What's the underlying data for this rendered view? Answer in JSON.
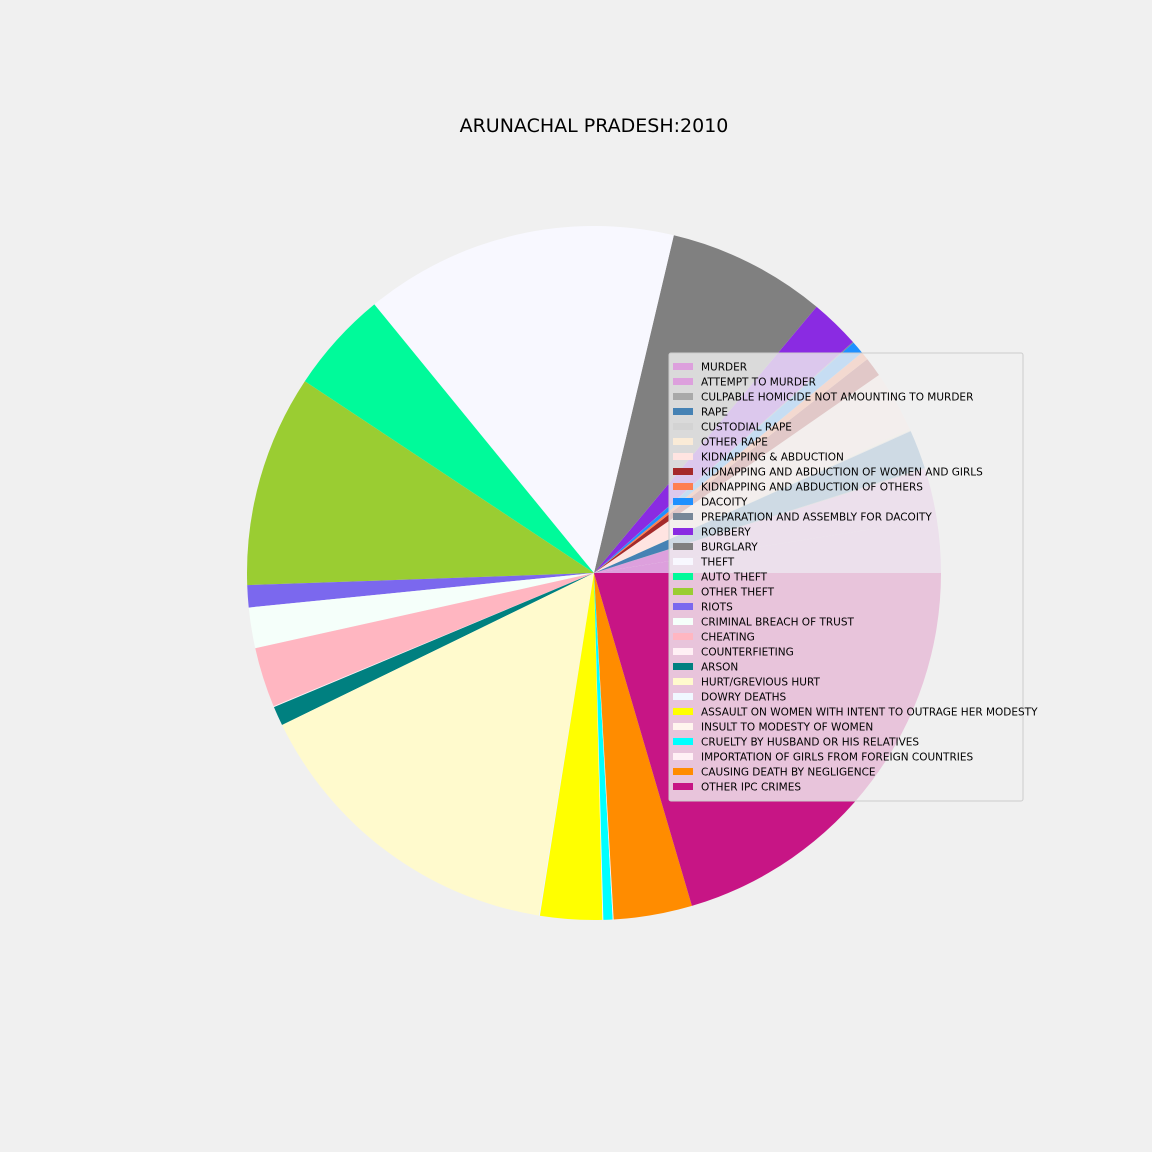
{
  "chart_data": {
    "type": "pie",
    "title": "ARUNACHAL PRADESH:2010",
    "legend_position": "right",
    "start_angle_deg": 0,
    "direction": "counterclockwise",
    "slices": [
      {
        "label": "MURDER",
        "value": 58,
        "color": "#dda0dd"
      },
      {
        "label": "ATTEMPT TO MURDER",
        "value": 55,
        "color": "#dda0dd"
      },
      {
        "label": "CULPABLE HOMICIDE NOT AMOUNTING TO MURDER",
        "value": 1,
        "color": "#a9a9a9"
      },
      {
        "label": "RAPE",
        "value": 42,
        "color": "#4682b4"
      },
      {
        "label": "CUSTODIAL RAPE",
        "value": 1,
        "color": "#d3d3d3"
      },
      {
        "label": "OTHER RAPE",
        "value": 2,
        "color": "#faebd7"
      },
      {
        "label": "KIDNAPPING & ABDUCTION",
        "value": 66,
        "color": "#ffe4e1"
      },
      {
        "label": "KIDNAPPING AND ABDUCTION OF WOMEN AND GIRLS",
        "value": 21,
        "color": "#a52a2a"
      },
      {
        "label": "KIDNAPPING AND ABDUCTION OF OTHERS",
        "value": 9,
        "color": "#ff7f50"
      },
      {
        "label": "DACOITY",
        "value": 14,
        "color": "#1e90ff"
      },
      {
        "label": "PREPARATION AND ASSEMBLY FOR DACOITY",
        "value": 1,
        "color": "#778899"
      },
      {
        "label": "ROBBERY",
        "value": 54,
        "color": "#8a2be2"
      },
      {
        "label": "BURGLARY",
        "value": 172,
        "color": "#808080"
      },
      {
        "label": "THEFT",
        "value": 340,
        "color": "#f8f8ff"
      },
      {
        "label": "AUTO THEFT",
        "value": 111,
        "color": "#00fa9a"
      },
      {
        "label": "OTHER THEFT",
        "value": 230,
        "color": "#9acd32"
      },
      {
        "label": "RIOTS",
        "value": 24,
        "color": "#7b68ee"
      },
      {
        "label": "CRIMINAL BREACH OF TRUST",
        "value": 44,
        "color": "#f5fffa"
      },
      {
        "label": "CHEATING",
        "value": 65,
        "color": "#ffb6c1"
      },
      {
        "label": "COUNTERFIETING",
        "value": 1,
        "color": "#fff0f5"
      },
      {
        "label": "ARSON",
        "value": 21,
        "color": "#008080"
      },
      {
        "label": "HURT/GREVIOUS HURT",
        "value": 355,
        "color": "#fffacd"
      },
      {
        "label": "DOWRY DEATHS",
        "value": 1,
        "color": "#f0f8ff"
      },
      {
        "label": "ASSAULT ON WOMEN WITH INTENT TO OUTRAGE HER MODESTY",
        "value": 67,
        "color": "#ffff00"
      },
      {
        "label": "INSULT TO MODESTY OF WOMEN",
        "value": 1,
        "color": "#fff5ee"
      },
      {
        "label": "CRUELTY BY HUSBAND OR HIS RELATIVES",
        "value": 10,
        "color": "#00ffff"
      },
      {
        "label": "IMPORTATION OF GIRLS FROM FOREIGN COUNTRIES",
        "value": 1,
        "color": "#fff0f5"
      },
      {
        "label": "CAUSING DEATH BY NEGLIGENCE",
        "value": 85,
        "color": "#ff8c00"
      },
      {
        "label": "OTHER IPC CRIMES",
        "value": 476,
        "color": "#c71585"
      }
    ]
  }
}
